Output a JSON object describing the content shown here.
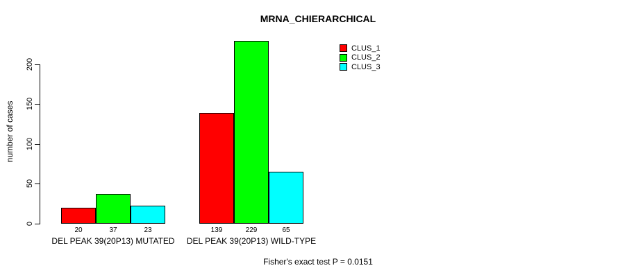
{
  "chart_data": {
    "type": "bar",
    "title": "MRNA_CHIERARCHICAL",
    "ylabel": "number of cases",
    "xlabel": "",
    "categories": [
      "DEL PEAK 39(20P13) MUTATED",
      "DEL PEAK 39(20P13) WILD-TYPE"
    ],
    "series": [
      {
        "name": "CLUS_1",
        "color": "#ff0000",
        "values": [
          20,
          139
        ]
      },
      {
        "name": "CLUS_2",
        "color": "#00ff00",
        "values": [
          37,
          229
        ]
      },
      {
        "name": "CLUS_3",
        "color": "#00ffff",
        "values": [
          23,
          65
        ]
      }
    ],
    "yticks": [
      0,
      50,
      100,
      150,
      200
    ],
    "ylim": [
      0,
      230
    ],
    "grid": false,
    "legend_position": "top-right",
    "annotation": "Fisher's exact test P = 0.0151",
    "bar_border_color": "#000000",
    "text_color": "#000000",
    "background_color": "#ffffff"
  }
}
